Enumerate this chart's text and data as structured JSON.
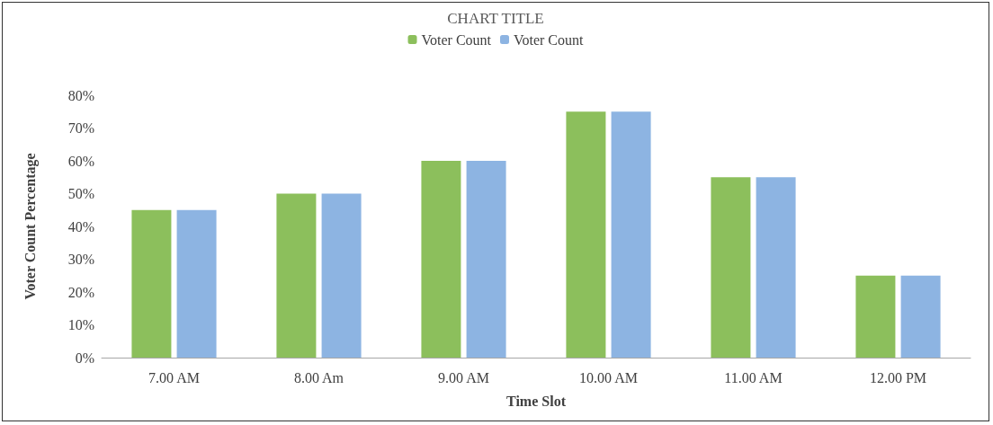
{
  "chart_data": {
    "type": "bar",
    "title": "CHART TITLE",
    "xlabel": "Time Slot",
    "ylabel": "Voter Count Percentage",
    "categories": [
      "7.00 AM",
      "8.00 Am",
      "9.00 AM",
      "10.00 AM",
      "11.00 AM",
      "12.00 PM"
    ],
    "series": [
      {
        "name": "Voter Count",
        "color": "#8cbf5c",
        "values": [
          45,
          50,
          60,
          75,
          55,
          25
        ]
      },
      {
        "name": "Voter Count",
        "color": "#8db4e2",
        "values": [
          45,
          50,
          60,
          75,
          55,
          25
        ]
      }
    ],
    "ylim": [
      0,
      80
    ],
    "yticks": [
      {
        "value": 0,
        "label": "0%"
      },
      {
        "value": 10,
        "label": "10%"
      },
      {
        "value": 20,
        "label": "20%"
      },
      {
        "value": 30,
        "label": "30%"
      },
      {
        "value": 40,
        "label": "40%"
      },
      {
        "value": 50,
        "label": "50%"
      },
      {
        "value": 60,
        "label": "60%"
      },
      {
        "value": 70,
        "label": "70%"
      },
      {
        "value": 80,
        "label": "80%"
      }
    ],
    "grid": false,
    "legend": "top"
  }
}
